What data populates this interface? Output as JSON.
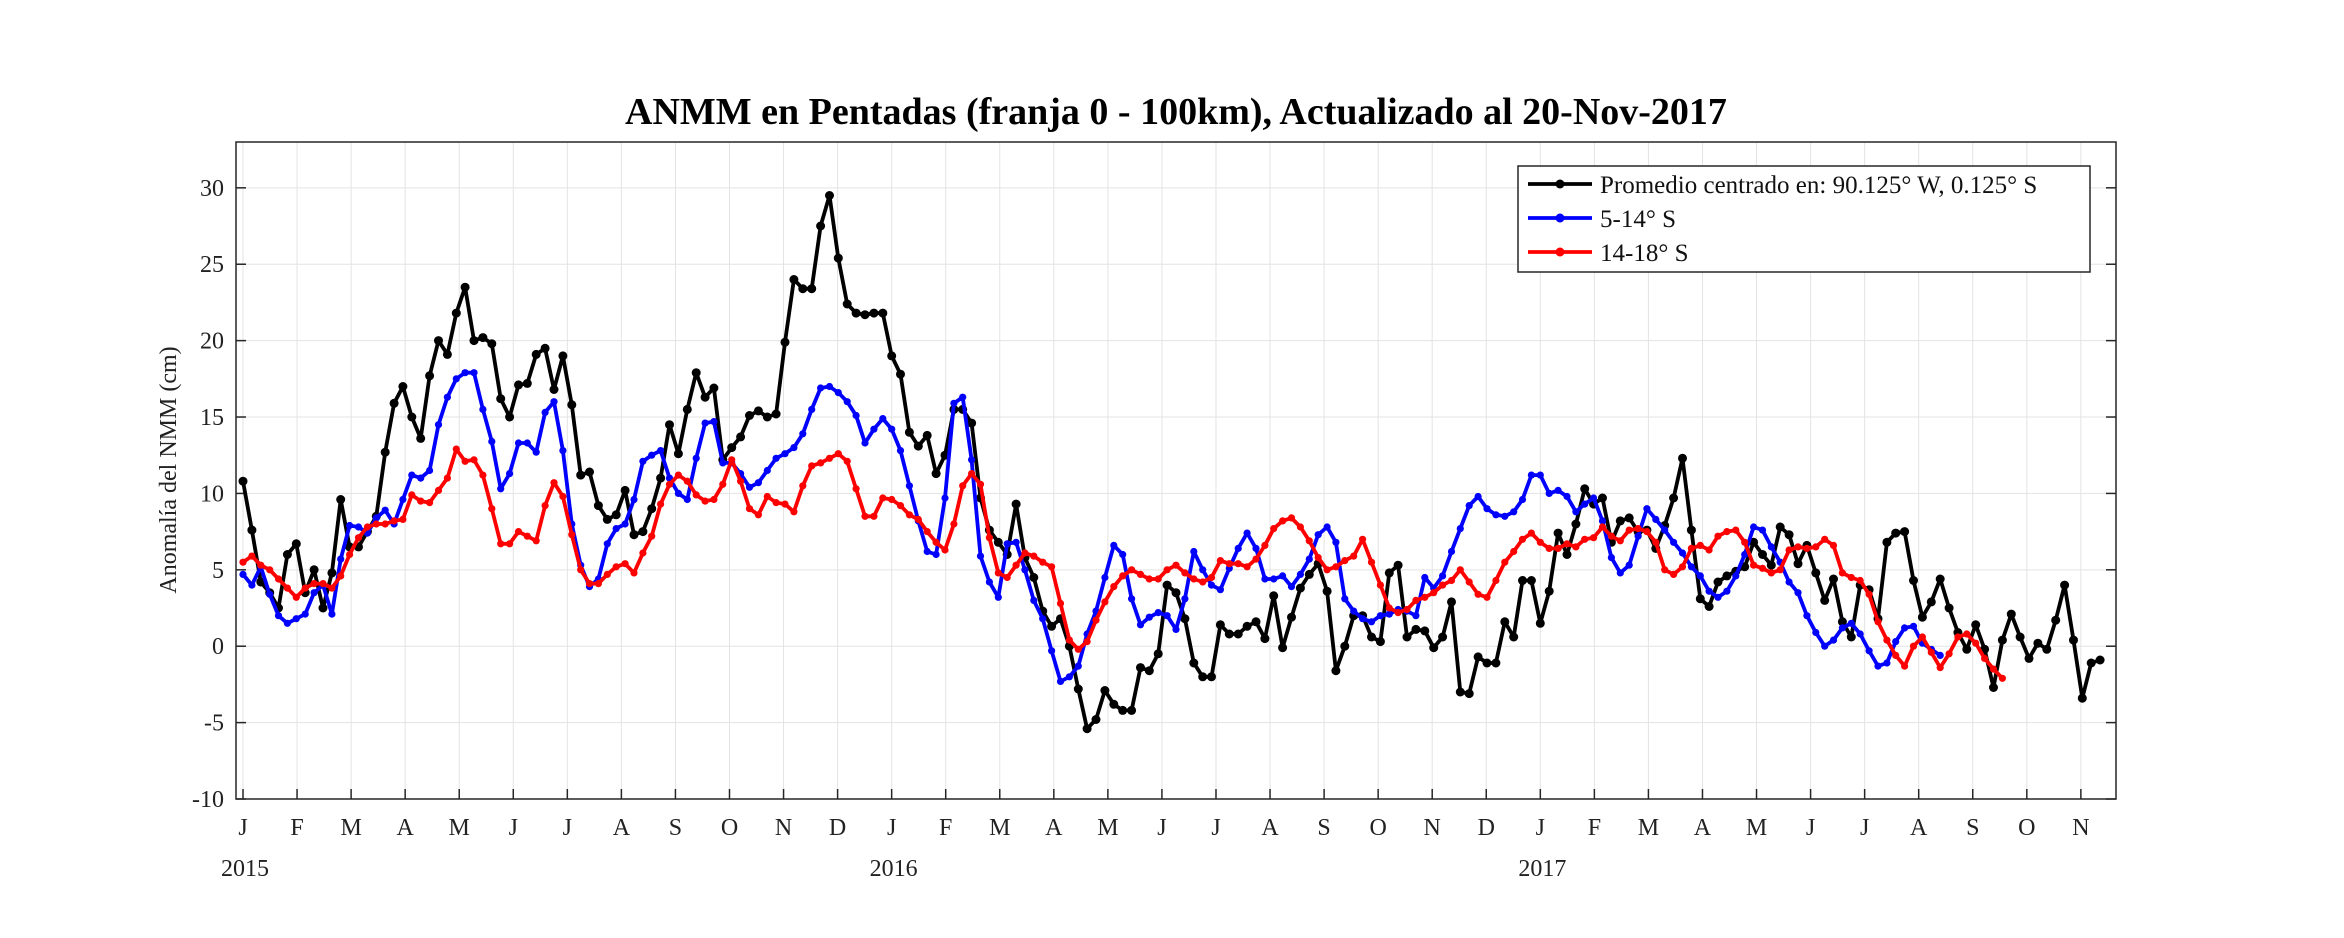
{
  "chart_data": {
    "type": "line",
    "title": "ANMM en Pentadas (franja 0 - 100km), Actualizado al 20-Nov-2017",
    "xlabel": "",
    "ylabel": "Anomalía del NMM (cm)",
    "ylim": [
      -10,
      33
    ],
    "yticks": [
      -10,
      -5,
      0,
      5,
      10,
      15,
      20,
      25,
      30
    ],
    "x_unit": "pentad index (73 pentads per year, starting 1-Jan-2015)",
    "xlim": [
      0,
      210
    ],
    "month_ticks": [
      "J",
      "F",
      "M",
      "A",
      "M",
      "J",
      "J",
      "A",
      "S",
      "O",
      "N",
      "D",
      "J",
      "F",
      "M",
      "A",
      "M",
      "J",
      "J",
      "A",
      "S",
      "O",
      "N",
      "D",
      "J",
      "F",
      "M",
      "A",
      "M",
      "J",
      "J",
      "A",
      "S",
      "O",
      "N"
    ],
    "year_labels": [
      "2015",
      "2016",
      "2017"
    ],
    "grid": true,
    "legend_position": "top-right",
    "series": [
      {
        "name": "Promedio centrado en: 90.125° W, 0.125° S",
        "color": "#000000",
        "values": [
          10.8,
          7.6,
          4.2,
          3.5,
          2.5,
          6.0,
          6.7,
          3.5,
          5.0,
          2.5,
          4.8,
          9.6,
          6.5,
          6.5,
          7.5,
          8.5,
          12.7,
          15.9,
          17.0,
          15.0,
          13.6,
          17.7,
          20.0,
          19.1,
          21.8,
          23.5,
          20.0,
          20.2,
          19.8,
          16.2,
          15.0,
          17.1,
          17.2,
          19.1,
          19.5,
          16.8,
          19.0,
          15.8,
          11.2,
          11.4,
          9.2,
          8.3,
          8.6,
          10.2,
          7.3,
          7.5,
          9.0,
          11.0,
          14.5,
          12.6,
          15.5,
          17.9,
          16.3,
          16.9,
          12.2,
          13.0,
          13.7,
          15.1,
          15.4,
          15.0,
          15.2,
          19.9,
          24.0,
          23.4,
          23.4,
          27.5,
          29.5,
          25.4,
          22.4,
          21.8,
          21.7,
          21.8,
          21.8,
          19.0,
          17.8,
          14.0,
          13.1,
          13.8,
          11.3,
          12.5,
          15.5,
          15.5,
          14.6,
          9.7,
          7.6,
          6.8,
          6.0,
          9.3,
          5.8,
          4.5,
          2.3,
          1.3,
          1.8,
          0.0,
          -2.8,
          -5.4,
          -4.8,
          -2.9,
          -3.8,
          -4.2,
          -4.2,
          -1.4,
          -1.6,
          -0.5,
          4.0,
          3.5,
          1.8,
          -1.1,
          -2.0,
          -2.0,
          1.4,
          0.8,
          0.8,
          1.3,
          1.6,
          0.5,
          3.3,
          -0.1,
          1.9,
          3.8,
          4.7,
          5.4,
          3.6,
          -1.6,
          0.0,
          2.0,
          2.0,
          0.6,
          0.3,
          4.8,
          5.3,
          0.6,
          1.1,
          1.0,
          -0.1,
          0.6,
          2.9,
          -3.0,
          -3.1,
          -0.7,
          -1.1,
          -1.1,
          1.6,
          0.6,
          4.3,
          4.3,
          1.5,
          3.6,
          7.4,
          6.0,
          8.0,
          10.3,
          9.3,
          9.7,
          6.8,
          8.2,
          8.4,
          7.5,
          7.6,
          6.4,
          7.9,
          9.7,
          12.3,
          7.6,
          3.1,
          2.6,
          4.2,
          4.6,
          4.9,
          5.2,
          6.8,
          6.0,
          5.3,
          7.8,
          7.3,
          5.4,
          6.6,
          4.8,
          3.0,
          4.4,
          1.6,
          0.6,
          4.0,
          3.7,
          1.8,
          6.8,
          7.4,
          7.5,
          4.3,
          1.9,
          2.9,
          4.4,
          2.5,
          0.9,
          -0.2,
          1.4,
          -0.2,
          -2.7,
          0.4,
          2.1,
          0.6,
          -0.8,
          0.2,
          -0.2,
          1.7,
          4.0,
          0.4,
          -3.4,
          -1.1,
          -0.9
        ]
      },
      {
        "name": "5-14° S",
        "color": "#0000ff",
        "values": [
          4.7,
          4.0,
          5.2,
          3.4,
          2.0,
          1.5,
          1.8,
          2.1,
          3.5,
          4.0,
          2.1,
          5.7,
          7.9,
          7.8,
          7.4,
          8.4,
          8.9,
          8.0,
          9.6,
          11.2,
          11.0,
          11.5,
          14.5,
          16.3,
          17.5,
          17.9,
          17.9,
          15.5,
          13.4,
          10.3,
          11.3,
          13.3,
          13.3,
          12.7,
          15.3,
          16.0,
          12.8,
          8.0,
          5.3,
          3.9,
          4.4,
          6.7,
          7.7,
          8.0,
          9.6,
          12.1,
          12.5,
          12.8,
          11.0,
          10.0,
          9.6,
          12.3,
          14.6,
          14.7,
          12.0,
          12.0,
          11.3,
          10.4,
          10.7,
          11.5,
          12.3,
          12.6,
          13.0,
          13.9,
          15.5,
          16.9,
          17.0,
          16.6,
          16.0,
          15.1,
          13.3,
          14.2,
          14.9,
          14.2,
          12.8,
          10.5,
          8.2,
          6.2,
          6.0,
          9.7,
          15.9,
          16.3,
          12.2,
          5.9,
          4.2,
          3.2,
          6.7,
          6.8,
          5.0,
          3.0,
          1.8,
          -0.3,
          -2.3,
          -2.0,
          -1.3,
          0.8,
          2.3,
          4.5,
          6.6,
          6.0,
          3.1,
          1.4,
          1.9,
          2.2,
          2.0,
          1.1,
          3.1,
          6.2,
          5.0,
          4.0,
          3.7,
          5.1,
          6.4,
          7.4,
          6.4,
          4.4,
          4.4,
          4.6,
          3.9,
          4.7,
          5.7,
          7.3,
          7.8,
          6.8,
          3.1,
          2.3,
          1.8,
          1.6,
          2.0,
          2.1,
          2.4,
          2.3,
          2.0,
          4.5,
          3.8,
          4.6,
          6.2,
          7.7,
          9.2,
          9.8,
          9.0,
          8.6,
          8.5,
          8.8,
          9.6,
          11.2,
          11.2,
          10.0,
          10.2,
          9.8,
          8.8,
          9.3,
          9.7,
          8.2,
          5.8,
          4.8,
          5.3,
          7.2,
          9.0,
          8.3,
          7.6,
          6.8,
          6.1,
          5.2,
          4.6,
          3.6,
          3.2,
          3.6,
          4.6,
          6.0,
          7.8,
          7.6,
          6.5,
          5.5,
          4.2,
          3.5,
          2.0,
          0.9,
          0.0,
          0.4,
          1.2,
          1.5,
          0.8,
          -0.3,
          -1.3,
          -1.1,
          0.3,
          1.2,
          1.3,
          0.2,
          -0.2,
          -0.6
        ]
      },
      {
        "name": "14-18° S",
        "color": "#ff0000",
        "values": [
          5.5,
          5.9,
          5.3,
          5.0,
          4.4,
          3.8,
          3.2,
          3.8,
          4.1,
          4.1,
          3.8,
          4.6,
          6.0,
          7.1,
          7.8,
          8.0,
          8.0,
          8.2,
          8.3,
          9.9,
          9.5,
          9.4,
          10.2,
          11.0,
          12.9,
          12.1,
          12.2,
          11.2,
          9.0,
          6.7,
          6.7,
          7.5,
          7.2,
          6.9,
          9.2,
          10.7,
          9.8,
          7.3,
          5.0,
          4.1,
          4.1,
          4.7,
          5.2,
          5.4,
          4.8,
          6.1,
          7.2,
          9.3,
          10.6,
          11.2,
          10.8,
          9.9,
          9.5,
          9.6,
          10.6,
          12.2,
          10.8,
          9.0,
          8.6,
          9.8,
          9.4,
          9.3,
          8.8,
          10.5,
          11.8,
          12.0,
          12.3,
          12.6,
          12.1,
          10.3,
          8.5,
          8.5,
          9.7,
          9.6,
          9.2,
          8.6,
          8.3,
          7.5,
          6.8,
          6.3,
          8.0,
          10.5,
          11.3,
          10.6,
          7.1,
          4.8,
          4.5,
          5.3,
          6.1,
          5.9,
          5.5,
          5.2,
          2.8,
          0.4,
          -0.2,
          0.3,
          1.7,
          2.9,
          3.9,
          4.6,
          5.0,
          4.7,
          4.4,
          4.4,
          5.0,
          5.3,
          4.8,
          4.4,
          4.2,
          4.5,
          5.6,
          5.4,
          5.4,
          5.2,
          5.7,
          6.6,
          7.7,
          8.2,
          8.4,
          7.8,
          6.9,
          5.8,
          5.0,
          5.2,
          5.6,
          5.9,
          7.0,
          5.5,
          4.0,
          2.5,
          2.2,
          2.4,
          3.0,
          3.2,
          3.5,
          4.0,
          4.3,
          5.0,
          4.2,
          3.4,
          3.2,
          4.3,
          5.5,
          6.2,
          7.0,
          7.4,
          6.8,
          6.4,
          6.4,
          6.7,
          6.5,
          7.0,
          7.1,
          7.8,
          7.2,
          6.9,
          7.6,
          7.7,
          7.5,
          6.8,
          5.0,
          4.7,
          5.2,
          6.4,
          6.6,
          6.3,
          7.2,
          7.5,
          7.6,
          6.8,
          5.3,
          5.1,
          4.8,
          5.0,
          6.3,
          6.5,
          6.4,
          6.5,
          7.0,
          6.6,
          4.8,
          4.5,
          4.3,
          3.4,
          1.6,
          0.4,
          -0.6,
          -1.3,
          0.0,
          0.6,
          -0.4,
          -1.4,
          -0.5,
          0.6,
          0.8,
          0.2,
          -0.8,
          -1.5,
          -2.1
        ]
      }
    ]
  }
}
